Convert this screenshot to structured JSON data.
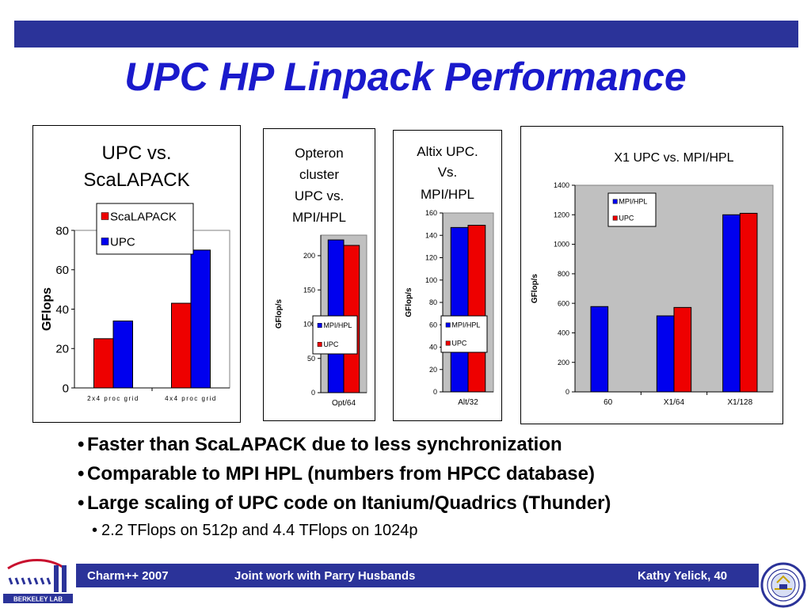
{
  "slide": {
    "title": "UPC HP Linpack Performance",
    "bullets": [
      "Faster than ScaLAPACK due to less synchronization",
      "Comparable to MPI HPL (numbers from HPCC database)",
      "Large scaling of UPC code on Itanium/Quadrics (Thunder)"
    ],
    "sub_bullets": [
      "2.2 TFlops on 512p  and 4.4 TFlops on 1024p"
    ],
    "bullet_symbol": "•",
    "footer": {
      "left": "Charm++ 2007",
      "center": "Joint work with Parry Husbands",
      "right": "Kathy Yelick,  40"
    },
    "logo_left_text": "BERKELEY LAB",
    "colors": {
      "bar_blue": "#0000ee",
      "bar_red": "#ee0000",
      "accent": "#2b3399",
      "title": "#1a1acc"
    }
  },
  "chart_data": [
    {
      "type": "bar",
      "title": "UPC vs. ScaLAPACK",
      "xlabel": "",
      "ylabel": "GFlops",
      "categories": [
        "2x4 proc grid",
        "4x4 proc grid"
      ],
      "series": [
        {
          "name": "ScaLAPACK",
          "values": [
            25,
            43
          ]
        },
        {
          "name": "UPC",
          "values": [
            34,
            70
          ]
        }
      ],
      "ylim": [
        0,
        80
      ],
      "yticks": [
        0,
        20,
        40,
        60,
        80
      ],
      "grid": false,
      "legend": "top-left"
    },
    {
      "type": "bar",
      "title": "Opteron cluster UPC vs. MPI/HPL",
      "xlabel": "",
      "ylabel": "GFlop/s",
      "categories": [
        "Opt/64"
      ],
      "series": [
        {
          "name": "MPI/HPL",
          "values": [
            223
          ]
        },
        {
          "name": "UPC",
          "values": [
            215
          ]
        }
      ],
      "ylim": [
        0,
        230
      ],
      "yticks": [
        0,
        50,
        100,
        150,
        200
      ],
      "grid": false,
      "legend": "center-right"
    },
    {
      "type": "bar",
      "title": "Altix UPC. Vs. MPI/HPL",
      "xlabel": "",
      "ylabel": "GFlop/s",
      "categories": [
        "Alt/32"
      ],
      "series": [
        {
          "name": "MPI/HPL",
          "values": [
            147
          ]
        },
        {
          "name": "UPC",
          "values": [
            149
          ]
        }
      ],
      "ylim": [
        0,
        160
      ],
      "yticks": [
        0,
        20,
        40,
        60,
        80,
        100,
        120,
        140,
        160
      ],
      "grid": false,
      "legend": "center-right"
    },
    {
      "type": "bar",
      "title": "X1 UPC vs. MPI/HPL",
      "xlabel": "",
      "ylabel": "GFlop/s",
      "categories": [
        "60",
        "X1/64",
        "X1/128"
      ],
      "series": [
        {
          "name": "MPI/HPL",
          "values": [
            578,
            515,
            1200
          ]
        },
        {
          "name": "UPC",
          "values": [
            null,
            572,
            1210
          ]
        }
      ],
      "ylim": [
        0,
        1400
      ],
      "yticks": [
        0,
        200,
        400,
        600,
        800,
        1000,
        1200,
        1400
      ],
      "grid": false,
      "legend": "top-left"
    }
  ]
}
